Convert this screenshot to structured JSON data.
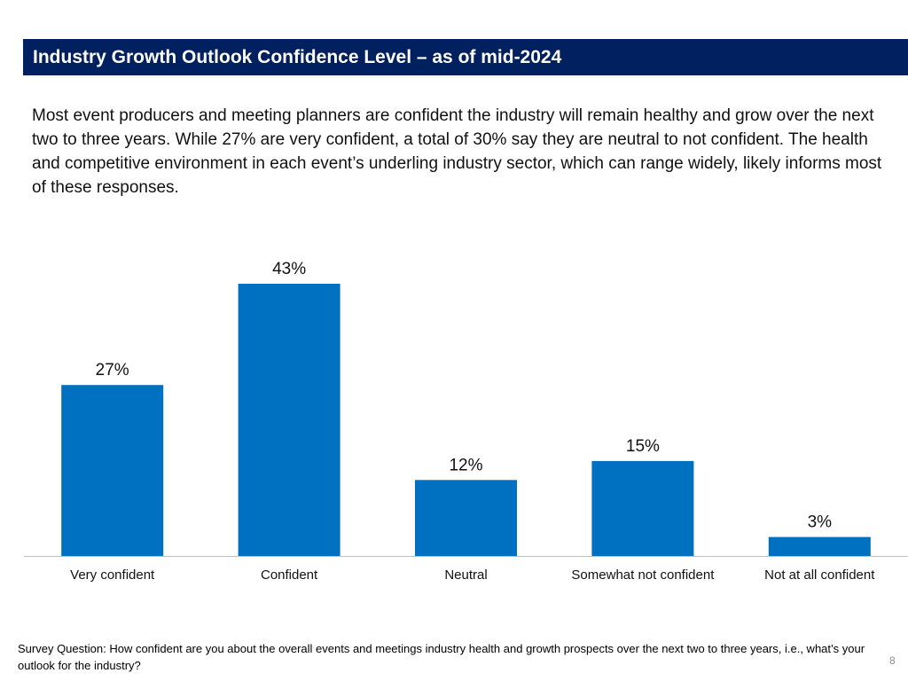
{
  "title": "Industry Growth Outlook Confidence Level – as of mid-2024",
  "body_text": "Most event producers and meeting planners are confident the industry will remain healthy and grow over the next two to three years. While 27% are very confident, a total of 30% say they are neutral to not confident. The health and competitive environment in each event’s underling industry sector, which can range widely, likely informs most of these responses.",
  "chart_data": {
    "type": "bar",
    "title": "",
    "xlabel": "",
    "ylabel": "",
    "categories": [
      "Very confident",
      "Confident",
      "Neutral",
      "Somewhat not confident",
      "Not at all confident"
    ],
    "values": [
      27,
      43,
      12,
      15,
      3
    ],
    "value_labels": [
      "27%",
      "43%",
      "12%",
      "15%",
      "3%"
    ],
    "ylim": [
      0,
      50
    ],
    "grid": false,
    "legend": "none",
    "bar_color": "#0070C0"
  },
  "footnote": "Survey Question: How confident are you about the overall events and meetings industry health and growth prospects over the next two to three years, i.e., what’s your outlook for the industry?",
  "page_number": "8",
  "colors": {
    "title_bar": "#002060",
    "bar": "#0070C0",
    "axis": "#bfbfbf"
  }
}
